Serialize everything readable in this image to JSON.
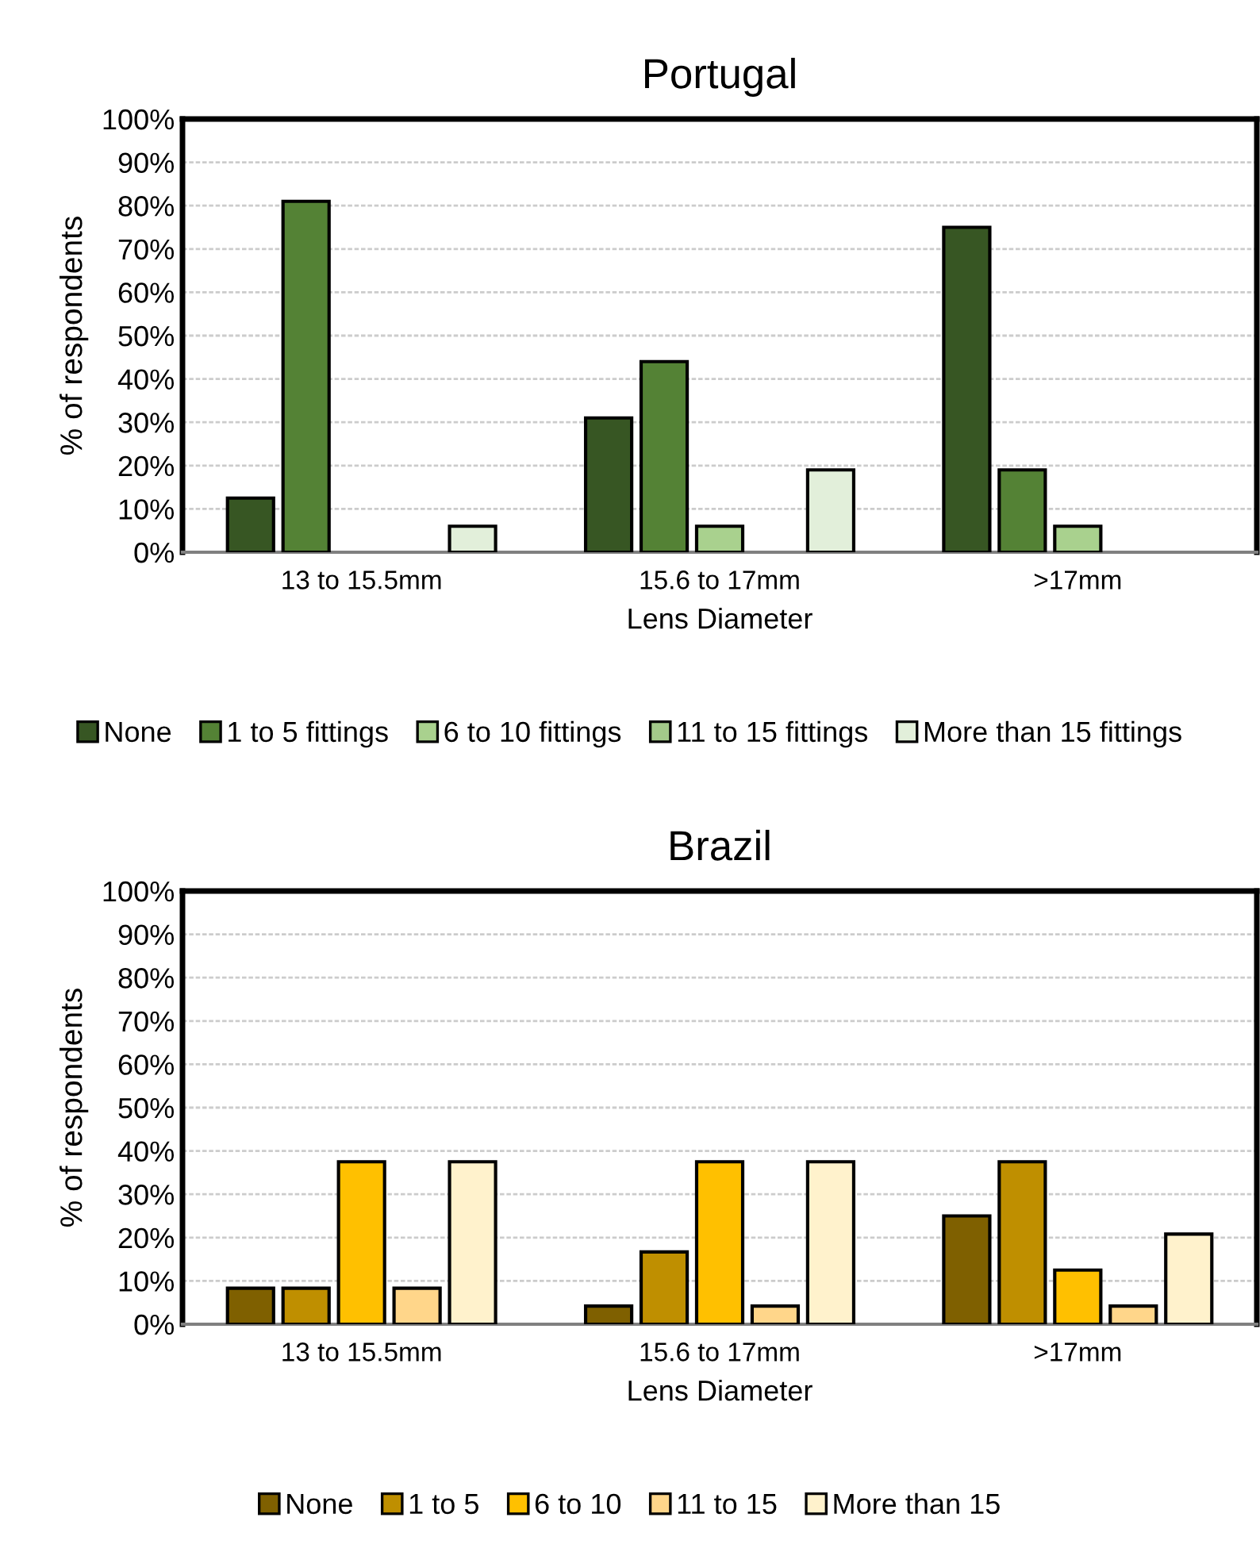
{
  "chart_data": [
    {
      "type": "bar",
      "title": "Portugal",
      "xlabel": "Lens Diameter",
      "ylabel": "% of respondents",
      "categories": [
        "13 to 15.5mm",
        "15.6 to 17mm",
        ">17mm"
      ],
      "ylim": [
        0,
        100
      ],
      "yticks": [
        {
          "value": 0,
          "label": "0%"
        },
        {
          "value": 10,
          "label": "10%"
        },
        {
          "value": 20,
          "label": "20%"
        },
        {
          "value": 30,
          "label": "30%"
        },
        {
          "value": 40,
          "label": "40%"
        },
        {
          "value": 50,
          "label": "50%"
        },
        {
          "value": 60,
          "label": "60%"
        },
        {
          "value": 70,
          "label": "70%"
        },
        {
          "value": 80,
          "label": "80%"
        },
        {
          "value": 90,
          "label": "90%"
        },
        {
          "value": 100,
          "label": "100%"
        }
      ],
      "grid": "y",
      "legend": "bottom",
      "series": [
        {
          "name": "None",
          "color": "#375623",
          "values": [
            12.5,
            31,
            75
          ]
        },
        {
          "name": "1 to 5 fittings",
          "color": "#548235",
          "values": [
            81,
            44,
            19
          ]
        },
        {
          "name": "6 to 10 fittings",
          "color": "#a9d18e",
          "values": [
            0,
            6,
            6
          ]
        },
        {
          "name": "11 to 15 fittings",
          "color": "#a3c98a",
          "values": [
            0,
            0,
            0
          ]
        },
        {
          "name": "More than 15 fittings",
          "color": "#e2efda",
          "values": [
            6,
            19,
            0
          ]
        }
      ]
    },
    {
      "type": "bar",
      "title": "Brazil",
      "xlabel": "Lens Diameter",
      "ylabel": "% of respondents",
      "categories": [
        "13 to 15.5mm",
        "15.6 to 17mm",
        ">17mm"
      ],
      "ylim": [
        0,
        100
      ],
      "yticks": [
        {
          "value": 0,
          "label": "0%"
        },
        {
          "value": 10,
          "label": "10%"
        },
        {
          "value": 20,
          "label": "20%"
        },
        {
          "value": 30,
          "label": "30%"
        },
        {
          "value": 40,
          "label": "40%"
        },
        {
          "value": 50,
          "label": "50%"
        },
        {
          "value": 60,
          "label": "60%"
        },
        {
          "value": 70,
          "label": "70%"
        },
        {
          "value": 80,
          "label": "80%"
        },
        {
          "value": 90,
          "label": "90%"
        },
        {
          "value": 100,
          "label": "100%"
        }
      ],
      "grid": "y",
      "legend": "bottom",
      "series": [
        {
          "name": "None",
          "color": "#7f6000",
          "values": [
            8.3,
            4.2,
            25
          ]
        },
        {
          "name": "1 to 5",
          "color": "#bf8f00",
          "values": [
            8.3,
            16.7,
            37.5
          ]
        },
        {
          "name": "6 to 10",
          "color": "#ffc000",
          "values": [
            37.5,
            37.5,
            12.5
          ]
        },
        {
          "name": "11 to 15",
          "color": "#ffd68a",
          "values": [
            8.3,
            4.2,
            4.2
          ]
        },
        {
          "name": "More than 15",
          "color": "#fff2cc",
          "values": [
            37.5,
            37.5,
            20.8
          ]
        }
      ]
    }
  ]
}
